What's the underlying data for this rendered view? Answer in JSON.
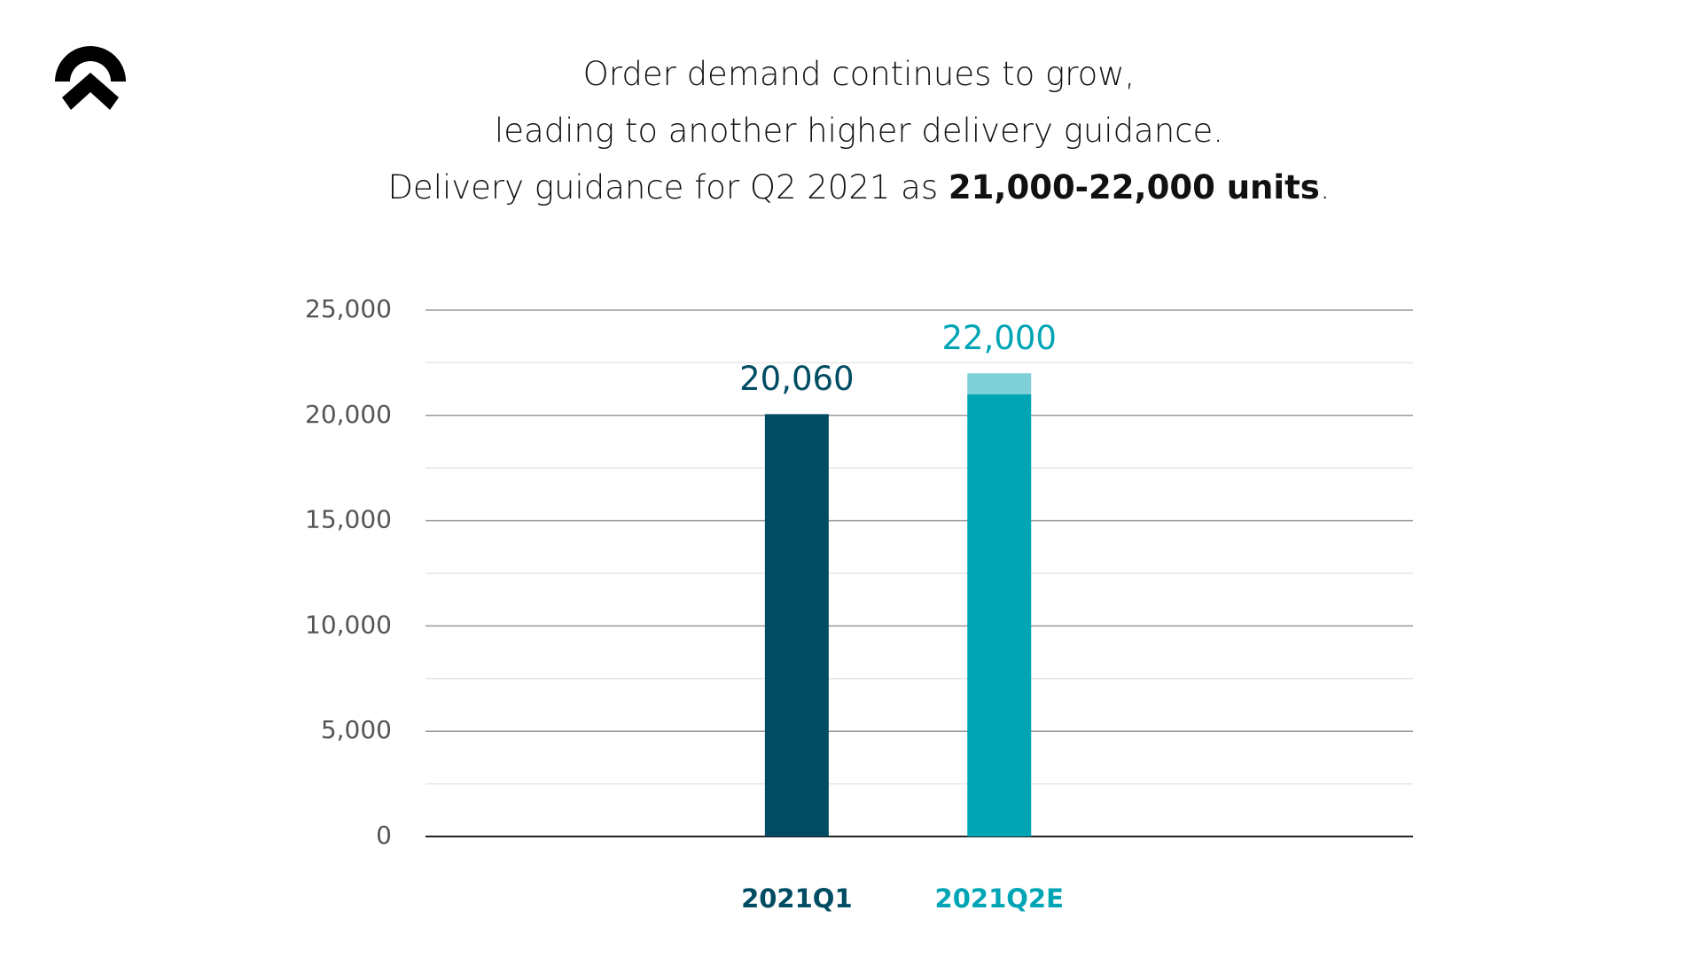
{
  "header": {
    "title_lines": [
      "Order demand continues to grow,",
      "leading to another higher delivery guidance."
    ],
    "guidance_prefix": "Delivery guidance for Q2 2021 as",
    "guidance_bold": "21,000-22,000 units",
    "guidance_suffix": "."
  },
  "chart_data": {
    "type": "stacked_bar",
    "categories": [
      "2021Q1",
      "2021Q2E"
    ],
    "category_colors": [
      "#004c63",
      "#00a5b5"
    ],
    "series": [
      {
        "colors": [
          "#004c63",
          "#00a5b5"
        ],
        "values": [
          20060,
          21000
        ]
      },
      {
        "colors": [
          "#7fd0d8",
          "#7fd0d8"
        ],
        "values": [
          null,
          1000
        ]
      }
    ],
    "totals": [
      20060,
      22000
    ],
    "total_labels": [
      "20,060",
      "22,000"
    ],
    "ylim": [
      0,
      25000
    ],
    "yticks": [
      {
        "value": 0,
        "label": "0"
      },
      {
        "value": 5000,
        "label": "5,000"
      },
      {
        "value": 10000,
        "label": "10,000"
      },
      {
        "value": 15000,
        "label": "15,000"
      },
      {
        "value": 20000,
        "label": "20,000"
      },
      {
        "value": 25000,
        "label": "25,000"
      }
    ],
    "minor_yticks": [
      2500,
      7500,
      12500,
      17500,
      22500
    ],
    "grid": true
  }
}
